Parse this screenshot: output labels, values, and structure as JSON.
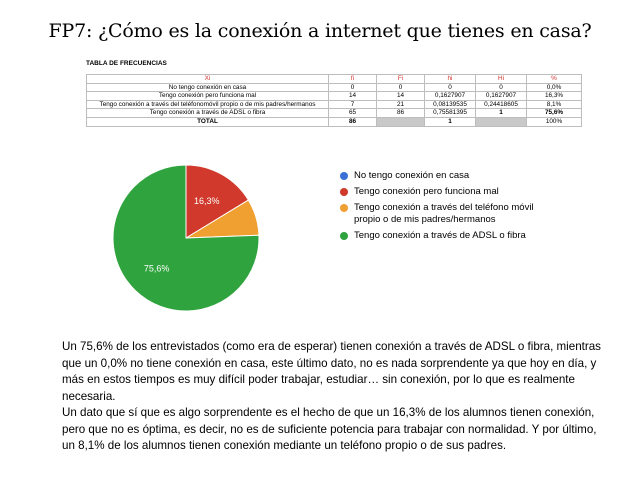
{
  "title": "FP7: ¿Cómo es la conexión a internet que tienes en casa?",
  "table": {
    "caption": "TABLA DE FRECUENCIAS",
    "headers": [
      "Xi",
      "fi",
      "Fi",
      "hi",
      "Hi",
      "%"
    ],
    "rows": [
      [
        "No tengo conexión en casa",
        "0",
        "0",
        "0",
        "0",
        "0,0%"
      ],
      [
        "Tengo conexión pero funciona mal",
        "14",
        "14",
        "0,1627907",
        "0,1627907",
        "16,3%"
      ],
      [
        "Tengo conexión a través del teléfonomóvil propio o de mis padres/hermanos",
        "7",
        "21",
        "0,08139535",
        "0,24418605",
        "8,1%"
      ],
      [
        "Tengo conexión a través de ADSL o fibra",
        "65",
        "86",
        "0,75581395",
        "1",
        "75,6%"
      ]
    ],
    "total": [
      "TOTAL",
      "86",
      "",
      "1",
      "",
      "100%"
    ]
  },
  "chart_data": {
    "type": "pie",
    "categories": [
      "No tengo conexión en casa",
      "Tengo conexión pero funciona mal",
      "Tengo conexión a través del teléfono móvil propio o de mis padres/hermanos",
      "Tengo conexión a través de ADSL o fibra"
    ],
    "values": [
      0.0,
      16.3,
      8.1,
      75.6
    ],
    "labels": [
      "",
      "16,3%",
      "",
      "75,6%"
    ],
    "colors": [
      "#3b6fd6",
      "#d0392b",
      "#f0a030",
      "#2fa33d"
    ],
    "legend": "right"
  },
  "paragraphs": [
    "Un 75,6% de los entrevistados (como era de esperar) tienen conexión a través de ADSL o fibra, mientras que un 0,0% no tiene conexión en casa, este último dato, no es nada sorprendente ya que hoy en día, y más en estos tiempos es muy difícil poder trabajar, estudiar… sin conexión, por lo que es realmente necesaria.",
    "Un dato que sí que es algo sorprendente es el hecho de que un 16,3% de los alumnos tienen conexión, pero que no es óptima, es decir, no es de suficiente potencia para trabajar con normalidad. Y por último, un 8,1% de los alumnos tienen conexión mediante un teléfono propio o de sus padres."
  ]
}
